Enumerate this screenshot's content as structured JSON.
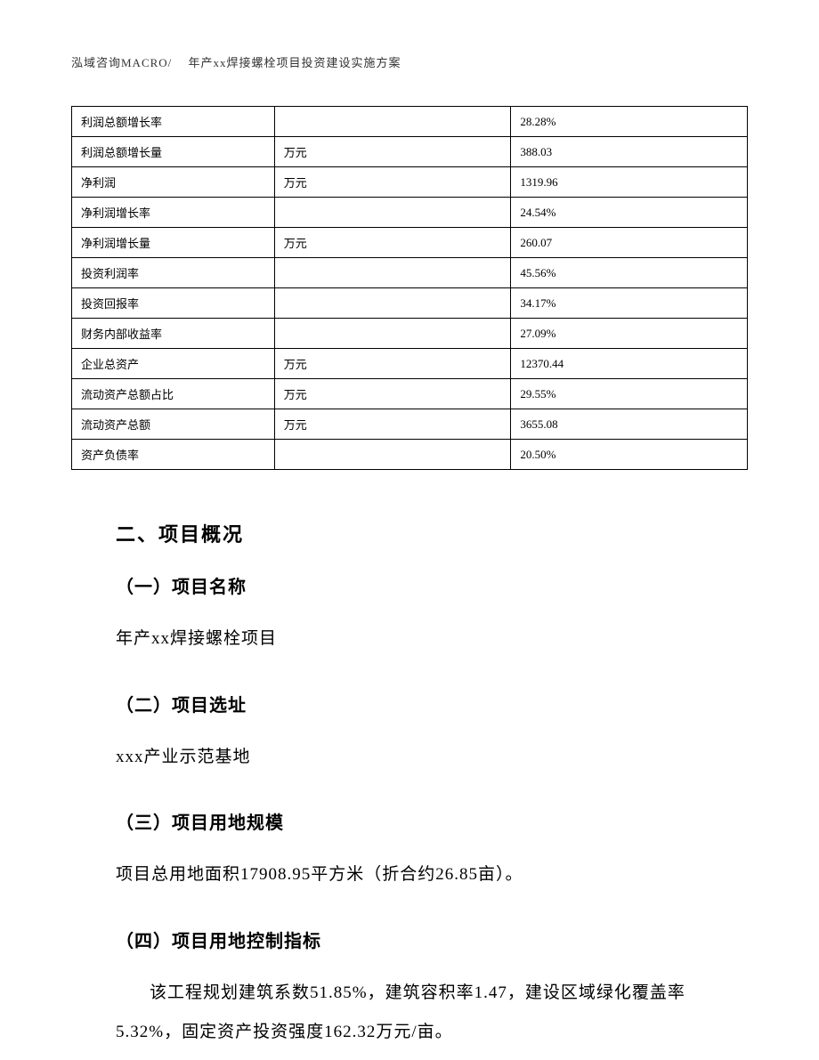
{
  "header": {
    "text": "泓域咨询MACRO/　 年产xx焊接螺栓项目投资建设实施方案"
  },
  "table": {
    "rows": [
      {
        "label": "利润总额增长率",
        "unit": "",
        "value": "28.28%"
      },
      {
        "label": "利润总额增长量",
        "unit": "万元",
        "value": "388.03"
      },
      {
        "label": "净利润",
        "unit": "万元",
        "value": "1319.96"
      },
      {
        "label": "净利润增长率",
        "unit": "",
        "value": "24.54%"
      },
      {
        "label": "净利润增长量",
        "unit": "万元",
        "value": "260.07"
      },
      {
        "label": "投资利润率",
        "unit": "",
        "value": "45.56%"
      },
      {
        "label": "投资回报率",
        "unit": "",
        "value": "34.17%"
      },
      {
        "label": "财务内部收益率",
        "unit": "",
        "value": "27.09%"
      },
      {
        "label": "企业总资产",
        "unit": "万元",
        "value": "12370.44"
      },
      {
        "label": "流动资产总额占比",
        "unit": "万元",
        "value": "29.55%"
      },
      {
        "label": "流动资产总额",
        "unit": "万元",
        "value": "3655.08"
      },
      {
        "label": "资产负债率",
        "unit": "",
        "value": "20.50%"
      }
    ]
  },
  "sections": {
    "main_heading": "二、项目概况",
    "sub1": {
      "heading": "（一）项目名称",
      "text": "年产xx焊接螺栓项目"
    },
    "sub2": {
      "heading": "（二）项目选址",
      "text": "xxx产业示范基地"
    },
    "sub3": {
      "heading": "（三）项目用地规模",
      "text": "项目总用地面积17908.95平方米（折合约26.85亩）。"
    },
    "sub4": {
      "heading": "（四）项目用地控制指标",
      "text": "该工程规划建筑系数51.85%，建筑容积率1.47，建设区域绿化覆盖率5.32%，固定资产投资强度162.32万元/亩。"
    }
  }
}
